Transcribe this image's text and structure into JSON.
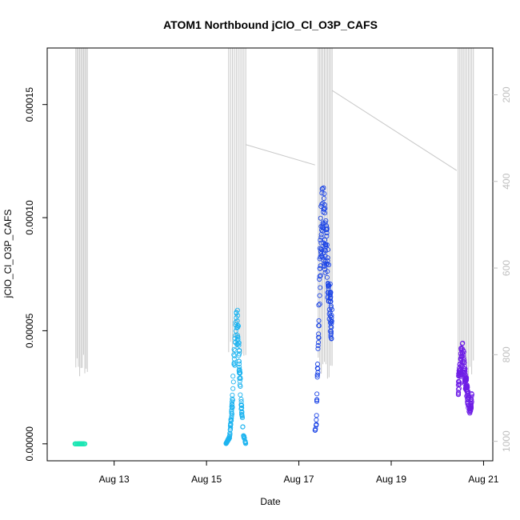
{
  "chart_data": {
    "type": "scatter",
    "title": "ATOM1 Northbound jClO_Cl_O3P_CAFS",
    "xlabel": "Date",
    "ylabel": "jClO_Cl_O3P_CAFS",
    "x_ticks": [
      "Aug 13",
      "Aug 15",
      "Aug 17",
      "Aug 19",
      "Aug 21"
    ],
    "x_tick_days": [
      13,
      15,
      17,
      19,
      21
    ],
    "xlim_days": [
      11.55,
      21.2
    ],
    "y_ticks": [
      "0.00000",
      "0.00005",
      "0.00010",
      "0.00015"
    ],
    "y_tick_values": [
      0.0,
      5e-05,
      0.0001,
      0.00015
    ],
    "ylim": [
      -7.5e-06,
      0.000175
    ],
    "y2_ticks": [
      "200",
      "400",
      "600",
      "800",
      "1000"
    ],
    "y2_tick_values": [
      200,
      400,
      600,
      800,
      1000
    ],
    "y2lim": [
      1045,
      92
    ],
    "y2_reversed": true,
    "grid": false,
    "colors": {
      "flight1": "#1ee6b4",
      "flight2": "#1eb4f0",
      "flight3": "#1e46e6",
      "flight4": "#6e1ee6",
      "altitude_trace": "#c8c8c8",
      "axis": "#000000",
      "y2_axis": "#bebebe"
    },
    "series": [
      {
        "color_key": "flight1",
        "x_range": [
          12.15,
          12.38
        ],
        "y_profile": [
          [
            12.15,
            0.0
          ],
          [
            12.38,
            0.0
          ]
        ]
      },
      {
        "color_key": "flight2",
        "x_range": [
          15.42,
          15.85
        ],
        "y_profile": [
          [
            15.42,
            0.0
          ],
          [
            15.5,
            3e-06
          ],
          [
            15.55,
            1.5e-05
          ],
          [
            15.6,
            3.8e-05
          ],
          [
            15.65,
            5.2e-05
          ],
          [
            15.68,
            5e-05
          ],
          [
            15.72,
            3e-05
          ],
          [
            15.76,
            1.5e-05
          ],
          [
            15.8,
            4e-06
          ],
          [
            15.85,
            0.0
          ]
        ]
      },
      {
        "color_key": "flight3",
        "x_range": [
          17.35,
          17.72
        ],
        "y_profile": [
          [
            17.35,
            6e-06
          ],
          [
            17.38,
            1e-05
          ],
          [
            17.42,
            4.5e-05
          ],
          [
            17.46,
            8e-05
          ],
          [
            17.5,
            0.0001
          ],
          [
            17.55,
            9.5e-05
          ],
          [
            17.6,
            8.5e-05
          ],
          [
            17.65,
            7e-05
          ],
          [
            17.68,
            6e-05
          ],
          [
            17.72,
            5e-05
          ]
        ]
      },
      {
        "color_key": "flight4",
        "x_range": [
          20.45,
          20.75
        ],
        "y_profile": [
          [
            20.45,
            2.5e-05
          ],
          [
            20.5,
            3.5e-05
          ],
          [
            20.55,
            4e-05
          ],
          [
            20.6,
            3e-05
          ],
          [
            20.65,
            2.2e-05
          ],
          [
            20.7,
            1.5e-05
          ],
          [
            20.75,
            2e-05
          ]
        ]
      }
    ],
    "altitude_trace": {
      "axis": "y2",
      "bursts": [
        {
          "x_range": [
            12.17,
            12.42
          ],
          "min_pressure": 790
        },
        {
          "x_range": [
            15.48,
            15.85
          ],
          "min_pressure": 750
        },
        {
          "x_range": [
            17.42,
            17.72
          ],
          "min_pressure": 800
        },
        {
          "x_range": [
            20.45,
            20.78
          ],
          "min_pressure": 800
        }
      ],
      "transits": [
        {
          "x": [
            15.85,
            17.35
          ],
          "y2": [
            315,
            362
          ]
        },
        {
          "x": [
            17.72,
            20.42
          ],
          "y2": [
            190,
            375
          ]
        }
      ]
    }
  }
}
